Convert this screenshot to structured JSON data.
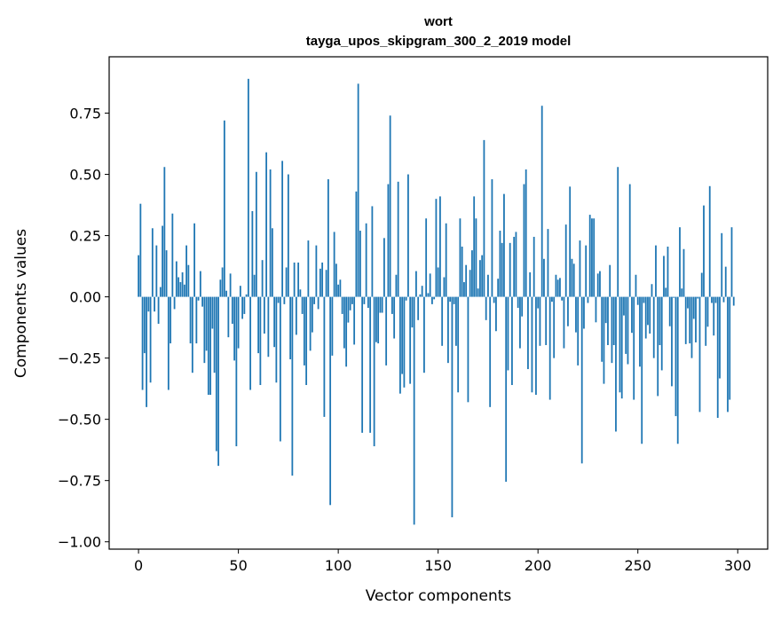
{
  "chart_data": {
    "type": "bar",
    "title": "wort",
    "subtitle": "tayga_upos_skipgram_300_2_2019 model",
    "xlabel": "Vector components",
    "ylabel": "Components values",
    "xlim": [
      -14.7,
      315
    ],
    "ylim": [
      -1.03,
      0.98
    ],
    "xticks": [
      0,
      50,
      100,
      150,
      200,
      250,
      300
    ],
    "xtick_labels": [
      "0",
      "50",
      "100",
      "150",
      "200",
      "250",
      "300"
    ],
    "yticks": [
      -1.0,
      -0.75,
      -0.5,
      -0.25,
      0.0,
      0.25,
      0.5,
      0.75
    ],
    "ytick_labels": [
      "−1.00",
      "−0.75",
      "−0.50",
      "−0.25",
      "0.00",
      "0.25",
      "0.50",
      "0.75"
    ],
    "grid": false,
    "color": "#1f77b4",
    "values": [
      0.17,
      0.38,
      -0.38,
      -0.23,
      -0.45,
      -0.06,
      -0.35,
      0.28,
      -0.06,
      0.21,
      -0.11,
      0.04,
      0.29,
      0.53,
      0.19,
      -0.38,
      -0.19,
      0.34,
      -0.05,
      0.145,
      0.08,
      0.06,
      0.1,
      0.05,
      0.21,
      0.13,
      -0.19,
      -0.31,
      0.3,
      -0.19,
      -0.015,
      0.105,
      -0.04,
      -0.27,
      -0.22,
      -0.4,
      -0.4,
      -0.13,
      -0.31,
      -0.63,
      -0.69,
      0.07,
      0.12,
      0.72,
      0.025,
      -0.165,
      0.095,
      -0.11,
      -0.26,
      -0.61,
      -0.21,
      0.045,
      -0.09,
      -0.07,
      0.01,
      0.89,
      -0.38,
      0.35,
      0.09,
      0.51,
      -0.23,
      -0.36,
      0.15,
      -0.15,
      0.59,
      -0.245,
      0.52,
      0.28,
      -0.205,
      -0.35,
      -0.025,
      -0.59,
      0.555,
      -0.03,
      0.12,
      0.5,
      -0.255,
      -0.73,
      0.14,
      -0.155,
      0.14,
      0.03,
      -0.07,
      -0.28,
      -0.36,
      0.23,
      -0.22,
      -0.145,
      -0.03,
      0.21,
      -0.05,
      0.115,
      0.14,
      -0.49,
      0.11,
      0.48,
      -0.85,
      -0.24,
      0.265,
      0.135,
      0.05,
      0.07,
      -0.07,
      -0.21,
      -0.285,
      -0.105,
      -0.055,
      -0.03,
      -0.195,
      0.43,
      0.87,
      0.27,
      -0.555,
      -0.03,
      0.3,
      -0.045,
      -0.555,
      0.37,
      -0.61,
      -0.185,
      -0.19,
      -0.065,
      -0.065,
      0.24,
      -0.28,
      0.46,
      0.74,
      -0.07,
      -0.17,
      0.09,
      0.47,
      -0.395,
      -0.315,
      -0.37,
      -0.015,
      0.5,
      -0.355,
      -0.125,
      -0.93,
      0.105,
      -0.095,
      0.01,
      0.045,
      -0.31,
      0.32,
      0.015,
      0.095,
      -0.03,
      -0.01,
      0.4,
      0.12,
      0.41,
      -0.2,
      0.08,
      0.3,
      -0.27,
      -0.02,
      -0.9,
      -0.03,
      -0.2,
      -0.39,
      0.32,
      0.205,
      0.06,
      0.13,
      -0.43,
      0.11,
      0.19,
      0.41,
      0.32,
      0.034,
      0.15,
      0.17,
      0.64,
      -0.095,
      0.09,
      -0.45,
      0.48,
      -0.025,
      -0.14,
      0.074,
      0.27,
      0.22,
      0.42,
      -0.755,
      -0.3,
      0.22,
      -0.36,
      0.245,
      0.265,
      -0.045,
      -0.21,
      -0.08,
      0.46,
      0.52,
      -0.295,
      0.1,
      -0.39,
      0.245,
      -0.4,
      -0.047,
      -0.2,
      0.78,
      0.155,
      -0.197,
      0.277,
      -0.42,
      -0.02,
      -0.25,
      0.09,
      0.07,
      0.077,
      -0.015,
      -0.21,
      0.295,
      -0.12,
      0.45,
      0.155,
      0.135,
      -0.145,
      -0.28,
      0.23,
      -0.68,
      -0.13,
      0.21,
      -0.025,
      0.335,
      0.32,
      0.32,
      -0.104,
      0.095,
      0.105,
      -0.265,
      -0.355,
      -0.107,
      -0.197,
      0.13,
      -0.27,
      -0.197,
      -0.55,
      0.53,
      -0.39,
      -0.415,
      -0.076,
      -0.233,
      -0.275,
      0.46,
      -0.147,
      -0.42,
      0.09,
      -0.033,
      -0.285,
      -0.6,
      -0.025,
      -0.17,
      -0.115,
      -0.15,
      0.052,
      -0.25,
      0.21,
      -0.405,
      -0.197,
      -0.3,
      0.167,
      0.037,
      0.205,
      -0.12,
      -0.365,
      -0.004,
      -0.487,
      -0.6,
      0.284,
      0.034,
      0.195,
      -0.193,
      -0.047,
      -0.19,
      -0.25,
      -0.09,
      -0.186,
      -0.007,
      -0.47,
      0.098,
      0.373,
      -0.2,
      -0.122,
      0.452,
      -0.025,
      -0.158,
      -0.025,
      -0.494,
      -0.333,
      0.26,
      -0.022,
      0.123,
      -0.47,
      -0.42,
      0.284,
      -0.036
    ]
  }
}
